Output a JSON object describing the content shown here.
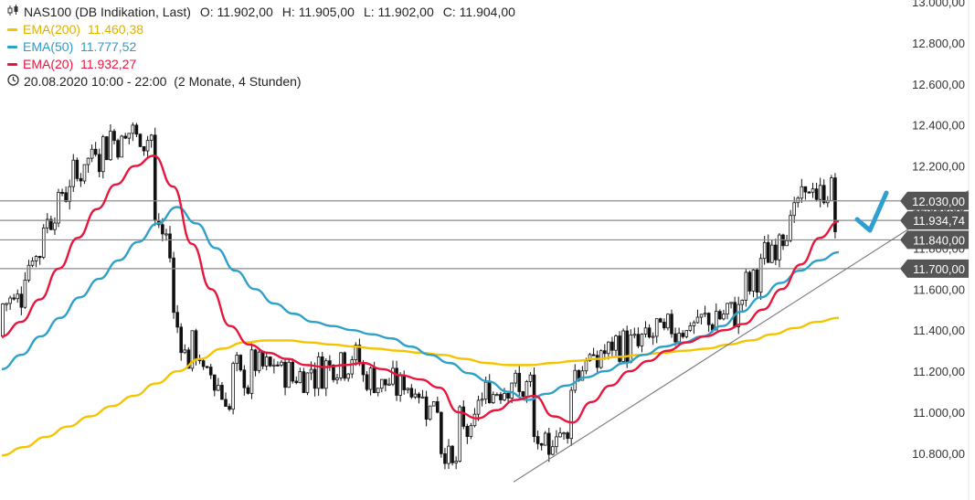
{
  "header": {
    "symbol": "NAS100 (DB Indikation, Last)",
    "open_label": "O:",
    "open": "11.902,00",
    "high_label": "H:",
    "high": "11.905,00",
    "low_label": "L:",
    "low": "11.902,00",
    "close_label": "C:",
    "close": "11.904,00",
    "ema200_label": "EMA(200)",
    "ema200_value": "11.460,38",
    "ema50_label": "EMA(50)",
    "ema50_value": "11.777,52",
    "ema20_label": "EMA(20)",
    "ema20_value": "11.932,27",
    "period": "20.08.2020 10:00 - 22:00",
    "timeframe": "(2 Monate, 4 Stunden)"
  },
  "colors": {
    "ema200": "#f5c400",
    "ema50": "#2ea0c9",
    "ema20": "#e8163c",
    "candle": "#111111",
    "level_line": "#8a8a8a",
    "badge": "#555555",
    "check": "#2f9fd0"
  },
  "icons": [
    "candlestick-icon",
    "clock-icon",
    "checkmark-icon"
  ],
  "chart_data": {
    "type": "candlestick",
    "y_ticks": [
      "13.000,00",
      "12.800,00",
      "12.600,00",
      "12.400,00",
      "12.200,00",
      "12.000,00",
      "11.800,00",
      "11.600,00",
      "11.400,00",
      "11.200,00",
      "11.000,00",
      "10.800,00"
    ],
    "y_tick_values": [
      13000,
      12800,
      12600,
      12400,
      12200,
      12000,
      11800,
      11600,
      11400,
      11200,
      11000,
      10800
    ],
    "ylim": [
      10640,
      13020
    ],
    "price_levels": [
      {
        "value": 12030,
        "label": "12.030,00",
        "badge": true
      },
      {
        "value": 11934.74,
        "label": "11.934,74",
        "badge": true
      },
      {
        "value": 11840,
        "label": "11.840,00",
        "badge": true
      },
      {
        "value": 11700,
        "label": "11.700,00",
        "badge": true
      }
    ],
    "trendline": {
      "from": 10660,
      "to": 12080
    },
    "series": [
      {
        "name": "EMA(20)",
        "color": "#e8163c",
        "values": [
          11370,
          11440,
          11550,
          11700,
          11850,
          11990,
          12110,
          12200,
          12250,
          12100,
          11820,
          11600,
          11420,
          11330,
          11290,
          11260,
          11230,
          11220,
          11230,
          11240,
          11210,
          11180,
          11160,
          11120,
          11000,
          10970,
          11010,
          11060,
          11080,
          10980,
          10950,
          11050,
          11130,
          11200,
          11250,
          11300,
          11340,
          11370,
          11400,
          11430,
          11500,
          11600,
          11720,
          11850,
          11930
        ]
      },
      {
        "name": "EMA(50)",
        "color": "#2ea0c9",
        "values": [
          11210,
          11280,
          11370,
          11460,
          11560,
          11650,
          11740,
          11830,
          11920,
          12000,
          11920,
          11800,
          11690,
          11600,
          11530,
          11480,
          11440,
          11420,
          11400,
          11380,
          11360,
          11320,
          11280,
          11240,
          11190,
          11150,
          11100,
          11060,
          11090,
          11130,
          11170,
          11200,
          11240,
          11280,
          11320,
          11340,
          11370,
          11420,
          11490,
          11560,
          11630,
          11690,
          11740,
          11780
        ]
      },
      {
        "name": "EMA(200)",
        "color": "#f5c400",
        "values": [
          10790,
          10830,
          10880,
          10930,
          10980,
          11030,
          11080,
          11140,
          11200,
          11260,
          11310,
          11340,
          11350,
          11350,
          11340,
          11330,
          11320,
          11310,
          11300,
          11290,
          11280,
          11260,
          11240,
          11230,
          11230,
          11240,
          11250,
          11260,
          11270,
          11280,
          11290,
          11300,
          11310,
          11330,
          11350,
          11380,
          11410,
          11440,
          11460
        ]
      }
    ]
  }
}
